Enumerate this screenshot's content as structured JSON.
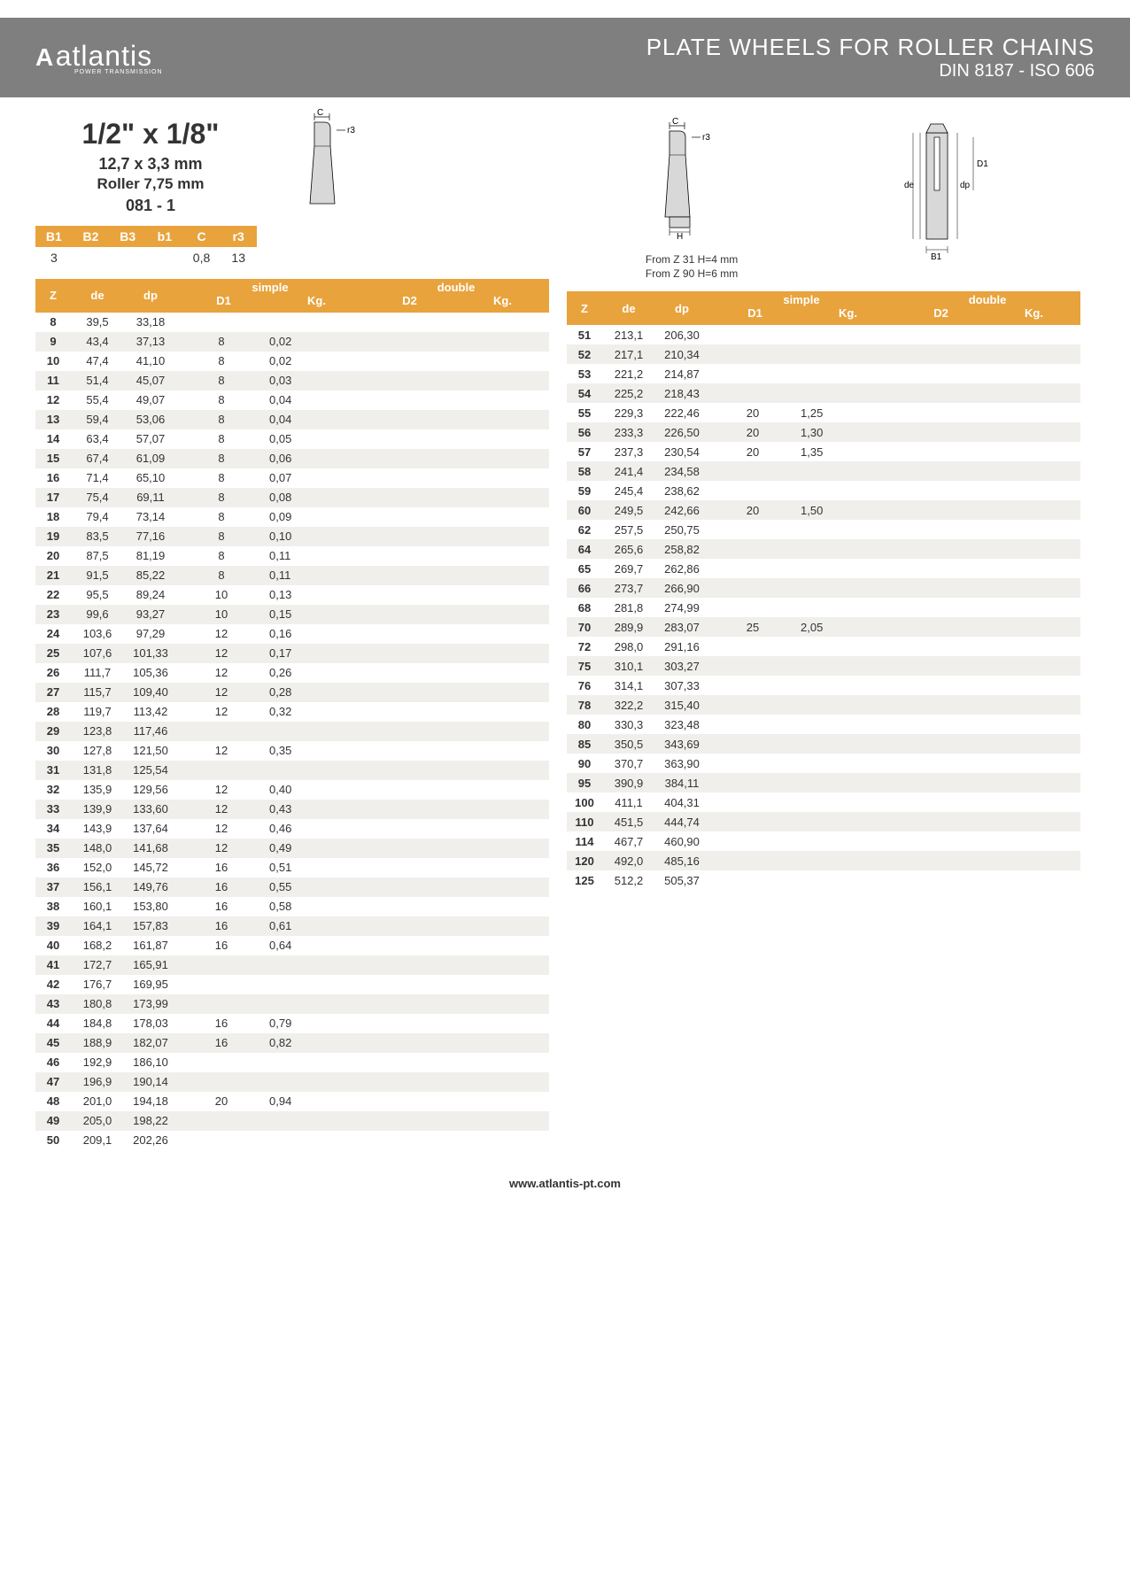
{
  "header": {
    "logo_mark": "A",
    "logo_text": "atlantis",
    "logo_sub": "POWER TRANSMISSION",
    "title": "PLATE WHEELS FOR ROLLER CHAINS",
    "subtitle": "DIN 8187 - ISO 606"
  },
  "spec": {
    "main": "1/2\" x 1/8\"",
    "mm": "12,7 x 3,3 mm",
    "roller": "Roller 7,75 mm",
    "code": "081 - 1"
  },
  "params": {
    "headers": [
      "B1",
      "B2",
      "B3",
      "b1",
      "C",
      "r3"
    ],
    "values": [
      "3",
      "",
      "",
      "",
      "0,8",
      "13"
    ]
  },
  "diag_notes": {
    "line1": "From Z 31 H=4 mm",
    "line2": "From Z 90 H=6 mm"
  },
  "table_headers": {
    "z": "Z",
    "de": "de",
    "dp": "dp",
    "simple": "simple",
    "d1": "D1",
    "kg1": "Kg.",
    "double": "double",
    "d2": "D2",
    "kg2": "Kg."
  },
  "table_left": [
    {
      "z": "8",
      "de": "39,5",
      "dp": "33,18",
      "d1": "",
      "kg": ""
    },
    {
      "z": "9",
      "de": "43,4",
      "dp": "37,13",
      "d1": "8",
      "kg": "0,02"
    },
    {
      "z": "10",
      "de": "47,4",
      "dp": "41,10",
      "d1": "8",
      "kg": "0,02"
    },
    {
      "z": "11",
      "de": "51,4",
      "dp": "45,07",
      "d1": "8",
      "kg": "0,03"
    },
    {
      "z": "12",
      "de": "55,4",
      "dp": "49,07",
      "d1": "8",
      "kg": "0,04"
    },
    {
      "z": "13",
      "de": "59,4",
      "dp": "53,06",
      "d1": "8",
      "kg": "0,04"
    },
    {
      "z": "14",
      "de": "63,4",
      "dp": "57,07",
      "d1": "8",
      "kg": "0,05"
    },
    {
      "z": "15",
      "de": "67,4",
      "dp": "61,09",
      "d1": "8",
      "kg": "0,06"
    },
    {
      "z": "16",
      "de": "71,4",
      "dp": "65,10",
      "d1": "8",
      "kg": "0,07"
    },
    {
      "z": "17",
      "de": "75,4",
      "dp": "69,11",
      "d1": "8",
      "kg": "0,08"
    },
    {
      "z": "18",
      "de": "79,4",
      "dp": "73,14",
      "d1": "8",
      "kg": "0,09"
    },
    {
      "z": "19",
      "de": "83,5",
      "dp": "77,16",
      "d1": "8",
      "kg": "0,10"
    },
    {
      "z": "20",
      "de": "87,5",
      "dp": "81,19",
      "d1": "8",
      "kg": "0,11"
    },
    {
      "z": "21",
      "de": "91,5",
      "dp": "85,22",
      "d1": "8",
      "kg": "0,11"
    },
    {
      "z": "22",
      "de": "95,5",
      "dp": "89,24",
      "d1": "10",
      "kg": "0,13"
    },
    {
      "z": "23",
      "de": "99,6",
      "dp": "93,27",
      "d1": "10",
      "kg": "0,15"
    },
    {
      "z": "24",
      "de": "103,6",
      "dp": "97,29",
      "d1": "12",
      "kg": "0,16"
    },
    {
      "z": "25",
      "de": "107,6",
      "dp": "101,33",
      "d1": "12",
      "kg": "0,17"
    },
    {
      "z": "26",
      "de": "111,7",
      "dp": "105,36",
      "d1": "12",
      "kg": "0,26"
    },
    {
      "z": "27",
      "de": "115,7",
      "dp": "109,40",
      "d1": "12",
      "kg": "0,28"
    },
    {
      "z": "28",
      "de": "119,7",
      "dp": "113,42",
      "d1": "12",
      "kg": "0,32"
    },
    {
      "z": "29",
      "de": "123,8",
      "dp": "117,46",
      "d1": "",
      "kg": ""
    },
    {
      "z": "30",
      "de": "127,8",
      "dp": "121,50",
      "d1": "12",
      "kg": "0,35"
    },
    {
      "z": "31",
      "de": "131,8",
      "dp": "125,54",
      "d1": "",
      "kg": ""
    },
    {
      "z": "32",
      "de": "135,9",
      "dp": "129,56",
      "d1": "12",
      "kg": "0,40"
    },
    {
      "z": "33",
      "de": "139,9",
      "dp": "133,60",
      "d1": "12",
      "kg": "0,43"
    },
    {
      "z": "34",
      "de": "143,9",
      "dp": "137,64",
      "d1": "12",
      "kg": "0,46"
    },
    {
      "z": "35",
      "de": "148,0",
      "dp": "141,68",
      "d1": "12",
      "kg": "0,49"
    },
    {
      "z": "36",
      "de": "152,0",
      "dp": "145,72",
      "d1": "16",
      "kg": "0,51"
    },
    {
      "z": "37",
      "de": "156,1",
      "dp": "149,76",
      "d1": "16",
      "kg": "0,55"
    },
    {
      "z": "38",
      "de": "160,1",
      "dp": "153,80",
      "d1": "16",
      "kg": "0,58"
    },
    {
      "z": "39",
      "de": "164,1",
      "dp": "157,83",
      "d1": "16",
      "kg": "0,61"
    },
    {
      "z": "40",
      "de": "168,2",
      "dp": "161,87",
      "d1": "16",
      "kg": "0,64"
    },
    {
      "z": "41",
      "de": "172,7",
      "dp": "165,91",
      "d1": "",
      "kg": ""
    },
    {
      "z": "42",
      "de": "176,7",
      "dp": "169,95",
      "d1": "",
      "kg": ""
    },
    {
      "z": "43",
      "de": "180,8",
      "dp": "173,99",
      "d1": "",
      "kg": ""
    },
    {
      "z": "44",
      "de": "184,8",
      "dp": "178,03",
      "d1": "16",
      "kg": "0,79"
    },
    {
      "z": "45",
      "de": "188,9",
      "dp": "182,07",
      "d1": "16",
      "kg": "0,82"
    },
    {
      "z": "46",
      "de": "192,9",
      "dp": "186,10",
      "d1": "",
      "kg": ""
    },
    {
      "z": "47",
      "de": "196,9",
      "dp": "190,14",
      "d1": "",
      "kg": ""
    },
    {
      "z": "48",
      "de": "201,0",
      "dp": "194,18",
      "d1": "20",
      "kg": "0,94"
    },
    {
      "z": "49",
      "de": "205,0",
      "dp": "198,22",
      "d1": "",
      "kg": ""
    },
    {
      "z": "50",
      "de": "209,1",
      "dp": "202,26",
      "d1": "",
      "kg": ""
    }
  ],
  "table_right": [
    {
      "z": "51",
      "de": "213,1",
      "dp": "206,30",
      "d1": "",
      "kg": ""
    },
    {
      "z": "52",
      "de": "217,1",
      "dp": "210,34",
      "d1": "",
      "kg": ""
    },
    {
      "z": "53",
      "de": "221,2",
      "dp": "214,87",
      "d1": "",
      "kg": ""
    },
    {
      "z": "54",
      "de": "225,2",
      "dp": "218,43",
      "d1": "",
      "kg": ""
    },
    {
      "z": "55",
      "de": "229,3",
      "dp": "222,46",
      "d1": "20",
      "kg": "1,25"
    },
    {
      "z": "56",
      "de": "233,3",
      "dp": "226,50",
      "d1": "20",
      "kg": "1,30"
    },
    {
      "z": "57",
      "de": "237,3",
      "dp": "230,54",
      "d1": "20",
      "kg": "1,35"
    },
    {
      "z": "58",
      "de": "241,4",
      "dp": "234,58",
      "d1": "",
      "kg": ""
    },
    {
      "z": "59",
      "de": "245,4",
      "dp": "238,62",
      "d1": "",
      "kg": ""
    },
    {
      "z": "60",
      "de": "249,5",
      "dp": "242,66",
      "d1": "20",
      "kg": "1,50"
    },
    {
      "z": "62",
      "de": "257,5",
      "dp": "250,75",
      "d1": "",
      "kg": ""
    },
    {
      "z": "64",
      "de": "265,6",
      "dp": "258,82",
      "d1": "",
      "kg": ""
    },
    {
      "z": "65",
      "de": "269,7",
      "dp": "262,86",
      "d1": "",
      "kg": ""
    },
    {
      "z": "66",
      "de": "273,7",
      "dp": "266,90",
      "d1": "",
      "kg": ""
    },
    {
      "z": "68",
      "de": "281,8",
      "dp": "274,99",
      "d1": "",
      "kg": ""
    },
    {
      "z": "70",
      "de": "289,9",
      "dp": "283,07",
      "d1": "25",
      "kg": "2,05"
    },
    {
      "z": "72",
      "de": "298,0",
      "dp": "291,16",
      "d1": "",
      "kg": ""
    },
    {
      "z": "75",
      "de": "310,1",
      "dp": "303,27",
      "d1": "",
      "kg": ""
    },
    {
      "z": "76",
      "de": "314,1",
      "dp": "307,33",
      "d1": "",
      "kg": ""
    },
    {
      "z": "78",
      "de": "322,2",
      "dp": "315,40",
      "d1": "",
      "kg": ""
    },
    {
      "z": "80",
      "de": "330,3",
      "dp": "323,48",
      "d1": "",
      "kg": ""
    },
    {
      "z": "85",
      "de": "350,5",
      "dp": "343,69",
      "d1": "",
      "kg": ""
    },
    {
      "z": "90",
      "de": "370,7",
      "dp": "363,90",
      "d1": "",
      "kg": ""
    },
    {
      "z": "95",
      "de": "390,9",
      "dp": "384,11",
      "d1": "",
      "kg": ""
    },
    {
      "z": "100",
      "de": "411,1",
      "dp": "404,31",
      "d1": "",
      "kg": ""
    },
    {
      "z": "110",
      "de": "451,5",
      "dp": "444,74",
      "d1": "",
      "kg": ""
    },
    {
      "z": "114",
      "de": "467,7",
      "dp": "460,90",
      "d1": "",
      "kg": ""
    },
    {
      "z": "120",
      "de": "492,0",
      "dp": "485,16",
      "d1": "",
      "kg": ""
    },
    {
      "z": "125",
      "de": "512,2",
      "dp": "505,37",
      "d1": "",
      "kg": ""
    }
  ],
  "footer": "www.atlantis-pt.com",
  "colors": {
    "header_bg": "#7f7f7f",
    "accent": "#e8a33d",
    "row_alt": "#f0efec"
  }
}
